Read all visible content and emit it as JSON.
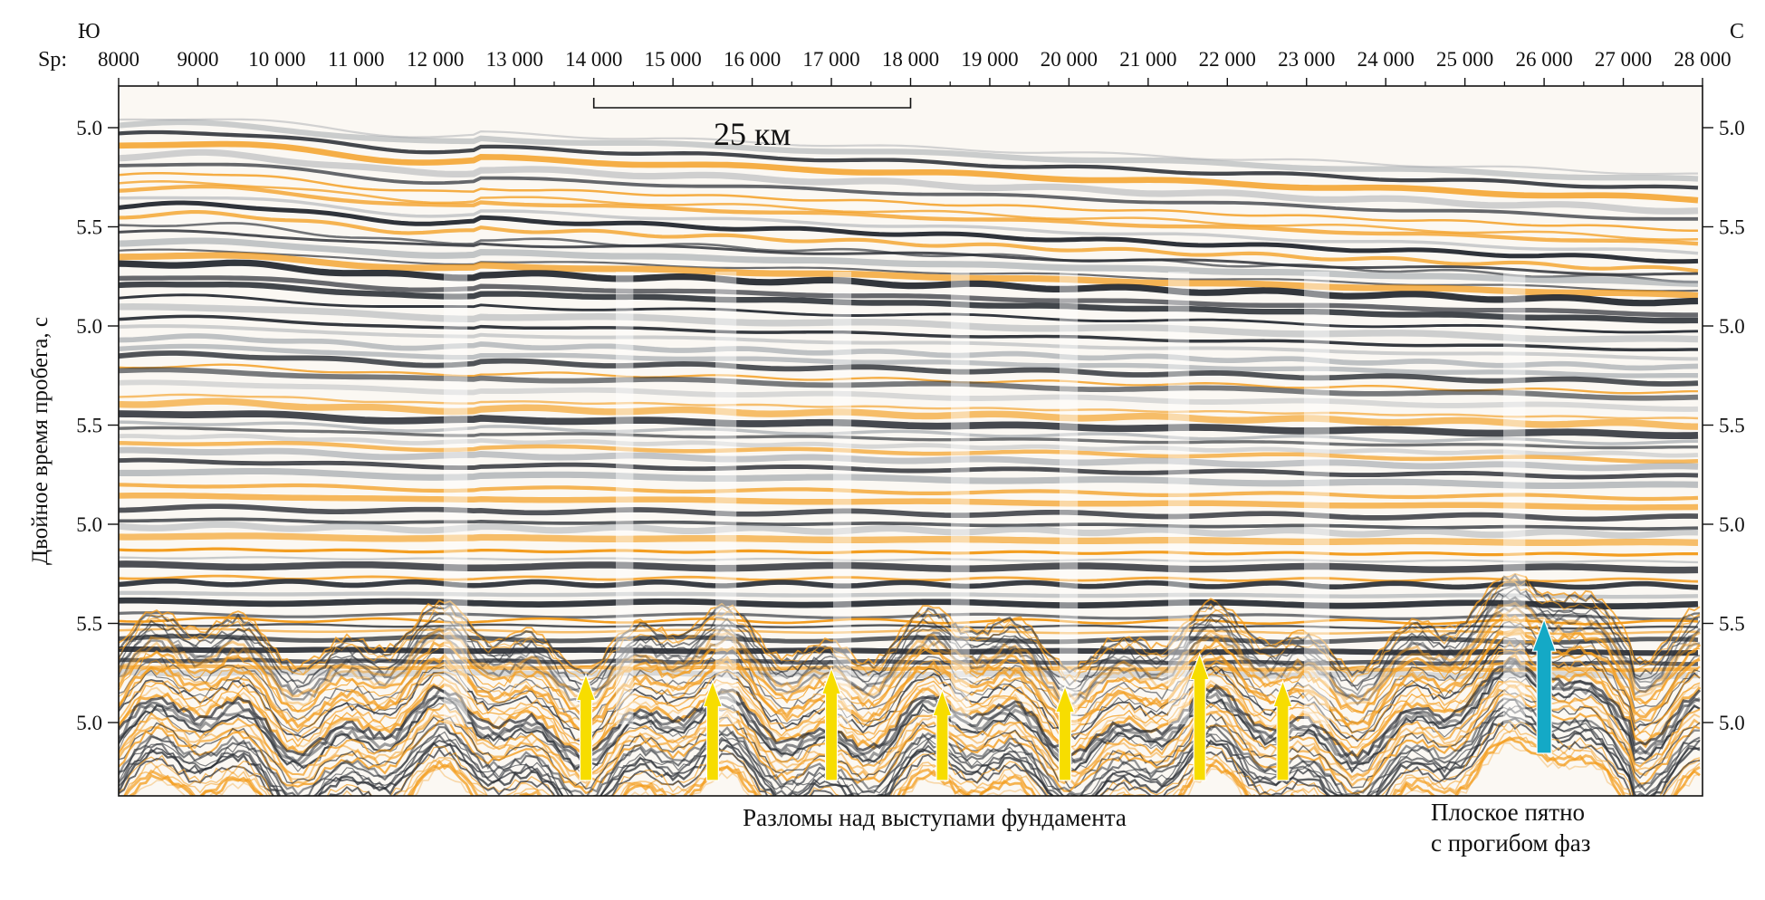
{
  "directions": {
    "south": "Ю",
    "north": "С"
  },
  "sp_axis": {
    "label": "Sp:",
    "ticks": [
      "8000",
      "9000",
      "10 000",
      "11 000",
      "12 000",
      "13 000",
      "14 000",
      "15 000",
      "16 000",
      "17 000",
      "18 000",
      "19 000",
      "20 000",
      "21 000",
      "22 000",
      "23 000",
      "24 000",
      "25 000",
      "26 000",
      "27 000",
      "28 000"
    ],
    "range": [
      8000,
      28000
    ]
  },
  "scale_bar": {
    "label": "25 км",
    "from_sp": 14000,
    "to_sp": 18000
  },
  "time_axis": {
    "label": "Двойное время пробега, с",
    "ticks": [
      "5.0",
      "5.5",
      "5.0",
      "5.5",
      "5.0",
      "5.5",
      "5.0"
    ]
  },
  "annotations": {
    "faults_label": "Разломы над выступами фундамента",
    "flat_spot_label_line1": "Плоское пятно",
    "flat_spot_label_line2": "с прогибом фаз"
  },
  "fault_arrows_sp": [
    13900,
    15500,
    17000,
    18400,
    19950,
    21650,
    22700
  ],
  "flat_spot_arrow_sp": 26000,
  "colors": {
    "orange": "#f39c1d",
    "dark": "#2b2f36",
    "gray": "#9aa0a6",
    "fault_arrow": "#f7dd00",
    "flat_spot_arrow": "#14a9c6"
  }
}
